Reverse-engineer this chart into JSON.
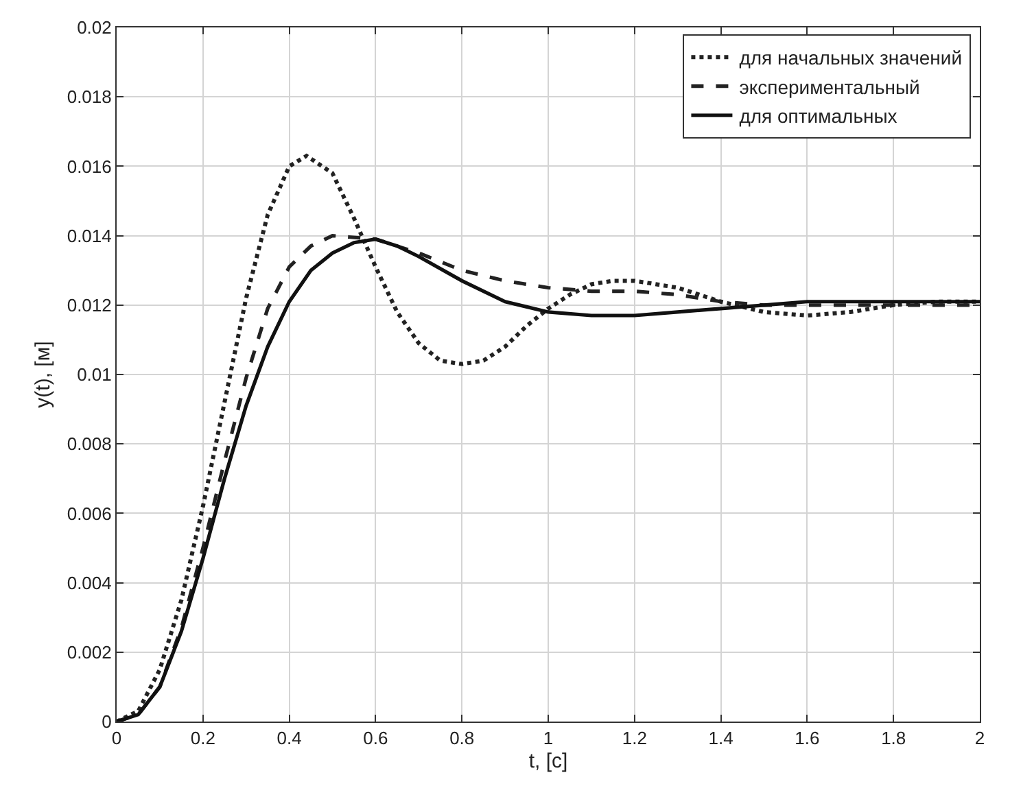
{
  "chart_data": {
    "type": "line",
    "xlabel": "t, [c]",
    "ylabel": "y(t), [м]",
    "xlim": [
      0,
      2
    ],
    "ylim": [
      0,
      0.02
    ],
    "xticks": [
      0,
      0.2,
      0.4,
      0.6,
      0.8,
      1,
      1.2,
      1.4,
      1.6,
      1.8,
      2
    ],
    "yticks": [
      0,
      0.002,
      0.004,
      0.006,
      0.008,
      0.01,
      0.012,
      0.014,
      0.016,
      0.018,
      0.02
    ],
    "grid": true,
    "legend": "top right",
    "marker": "none",
    "series": [
      {
        "name": "для начальных значений",
        "color": "#222222",
        "line_style": "dotted",
        "x": [
          0,
          0.05,
          0.1,
          0.15,
          0.2,
          0.25,
          0.3,
          0.35,
          0.4,
          0.44,
          0.5,
          0.55,
          0.6,
          0.65,
          0.7,
          0.75,
          0.8,
          0.85,
          0.9,
          0.95,
          1,
          1.05,
          1.1,
          1.15,
          1.2,
          1.3,
          1.4,
          1.5,
          1.6,
          1.7,
          1.8,
          1.9,
          2
        ],
        "values": [
          0,
          0.0003,
          0.0015,
          0.0035,
          0.0062,
          0.0092,
          0.0122,
          0.0146,
          0.016,
          0.0163,
          0.0158,
          0.0145,
          0.0131,
          0.0118,
          0.0109,
          0.0104,
          0.0103,
          0.0104,
          0.0108,
          0.0114,
          0.0119,
          0.0123,
          0.0126,
          0.0127,
          0.0127,
          0.0125,
          0.0121,
          0.0118,
          0.0117,
          0.0118,
          0.012,
          0.0121,
          0.0121
        ]
      },
      {
        "name": "экспериментальный",
        "color": "#222222",
        "line_style": "dashed",
        "x": [
          0,
          0.05,
          0.1,
          0.15,
          0.2,
          0.25,
          0.3,
          0.35,
          0.4,
          0.45,
          0.5,
          0.6,
          0.7,
          0.8,
          0.9,
          1,
          1.1,
          1.2,
          1.3,
          1.4,
          1.5,
          1.6,
          1.8,
          2
        ],
        "values": [
          0,
          0.0002,
          0.001,
          0.0027,
          0.005,
          0.0075,
          0.0099,
          0.0119,
          0.0131,
          0.0137,
          0.014,
          0.0139,
          0.0135,
          0.013,
          0.0127,
          0.0125,
          0.0124,
          0.0124,
          0.0123,
          0.0121,
          0.012,
          0.012,
          0.012,
          0.012
        ]
      },
      {
        "name": "для оптимальных",
        "color": "#111111",
        "line_style": "solid",
        "x": [
          0,
          0.05,
          0.1,
          0.15,
          0.2,
          0.25,
          0.3,
          0.35,
          0.4,
          0.45,
          0.5,
          0.55,
          0.6,
          0.65,
          0.7,
          0.8,
          0.9,
          1,
          1.1,
          1.2,
          1.3,
          1.4,
          1.5,
          1.6,
          1.8,
          2
        ],
        "values": [
          0,
          0.0002,
          0.001,
          0.0026,
          0.0047,
          0.007,
          0.0091,
          0.0108,
          0.0121,
          0.013,
          0.0135,
          0.0138,
          0.0139,
          0.0137,
          0.0134,
          0.0127,
          0.0121,
          0.0118,
          0.0117,
          0.0117,
          0.0118,
          0.0119,
          0.012,
          0.0121,
          0.0121,
          0.0121
        ]
      }
    ]
  }
}
